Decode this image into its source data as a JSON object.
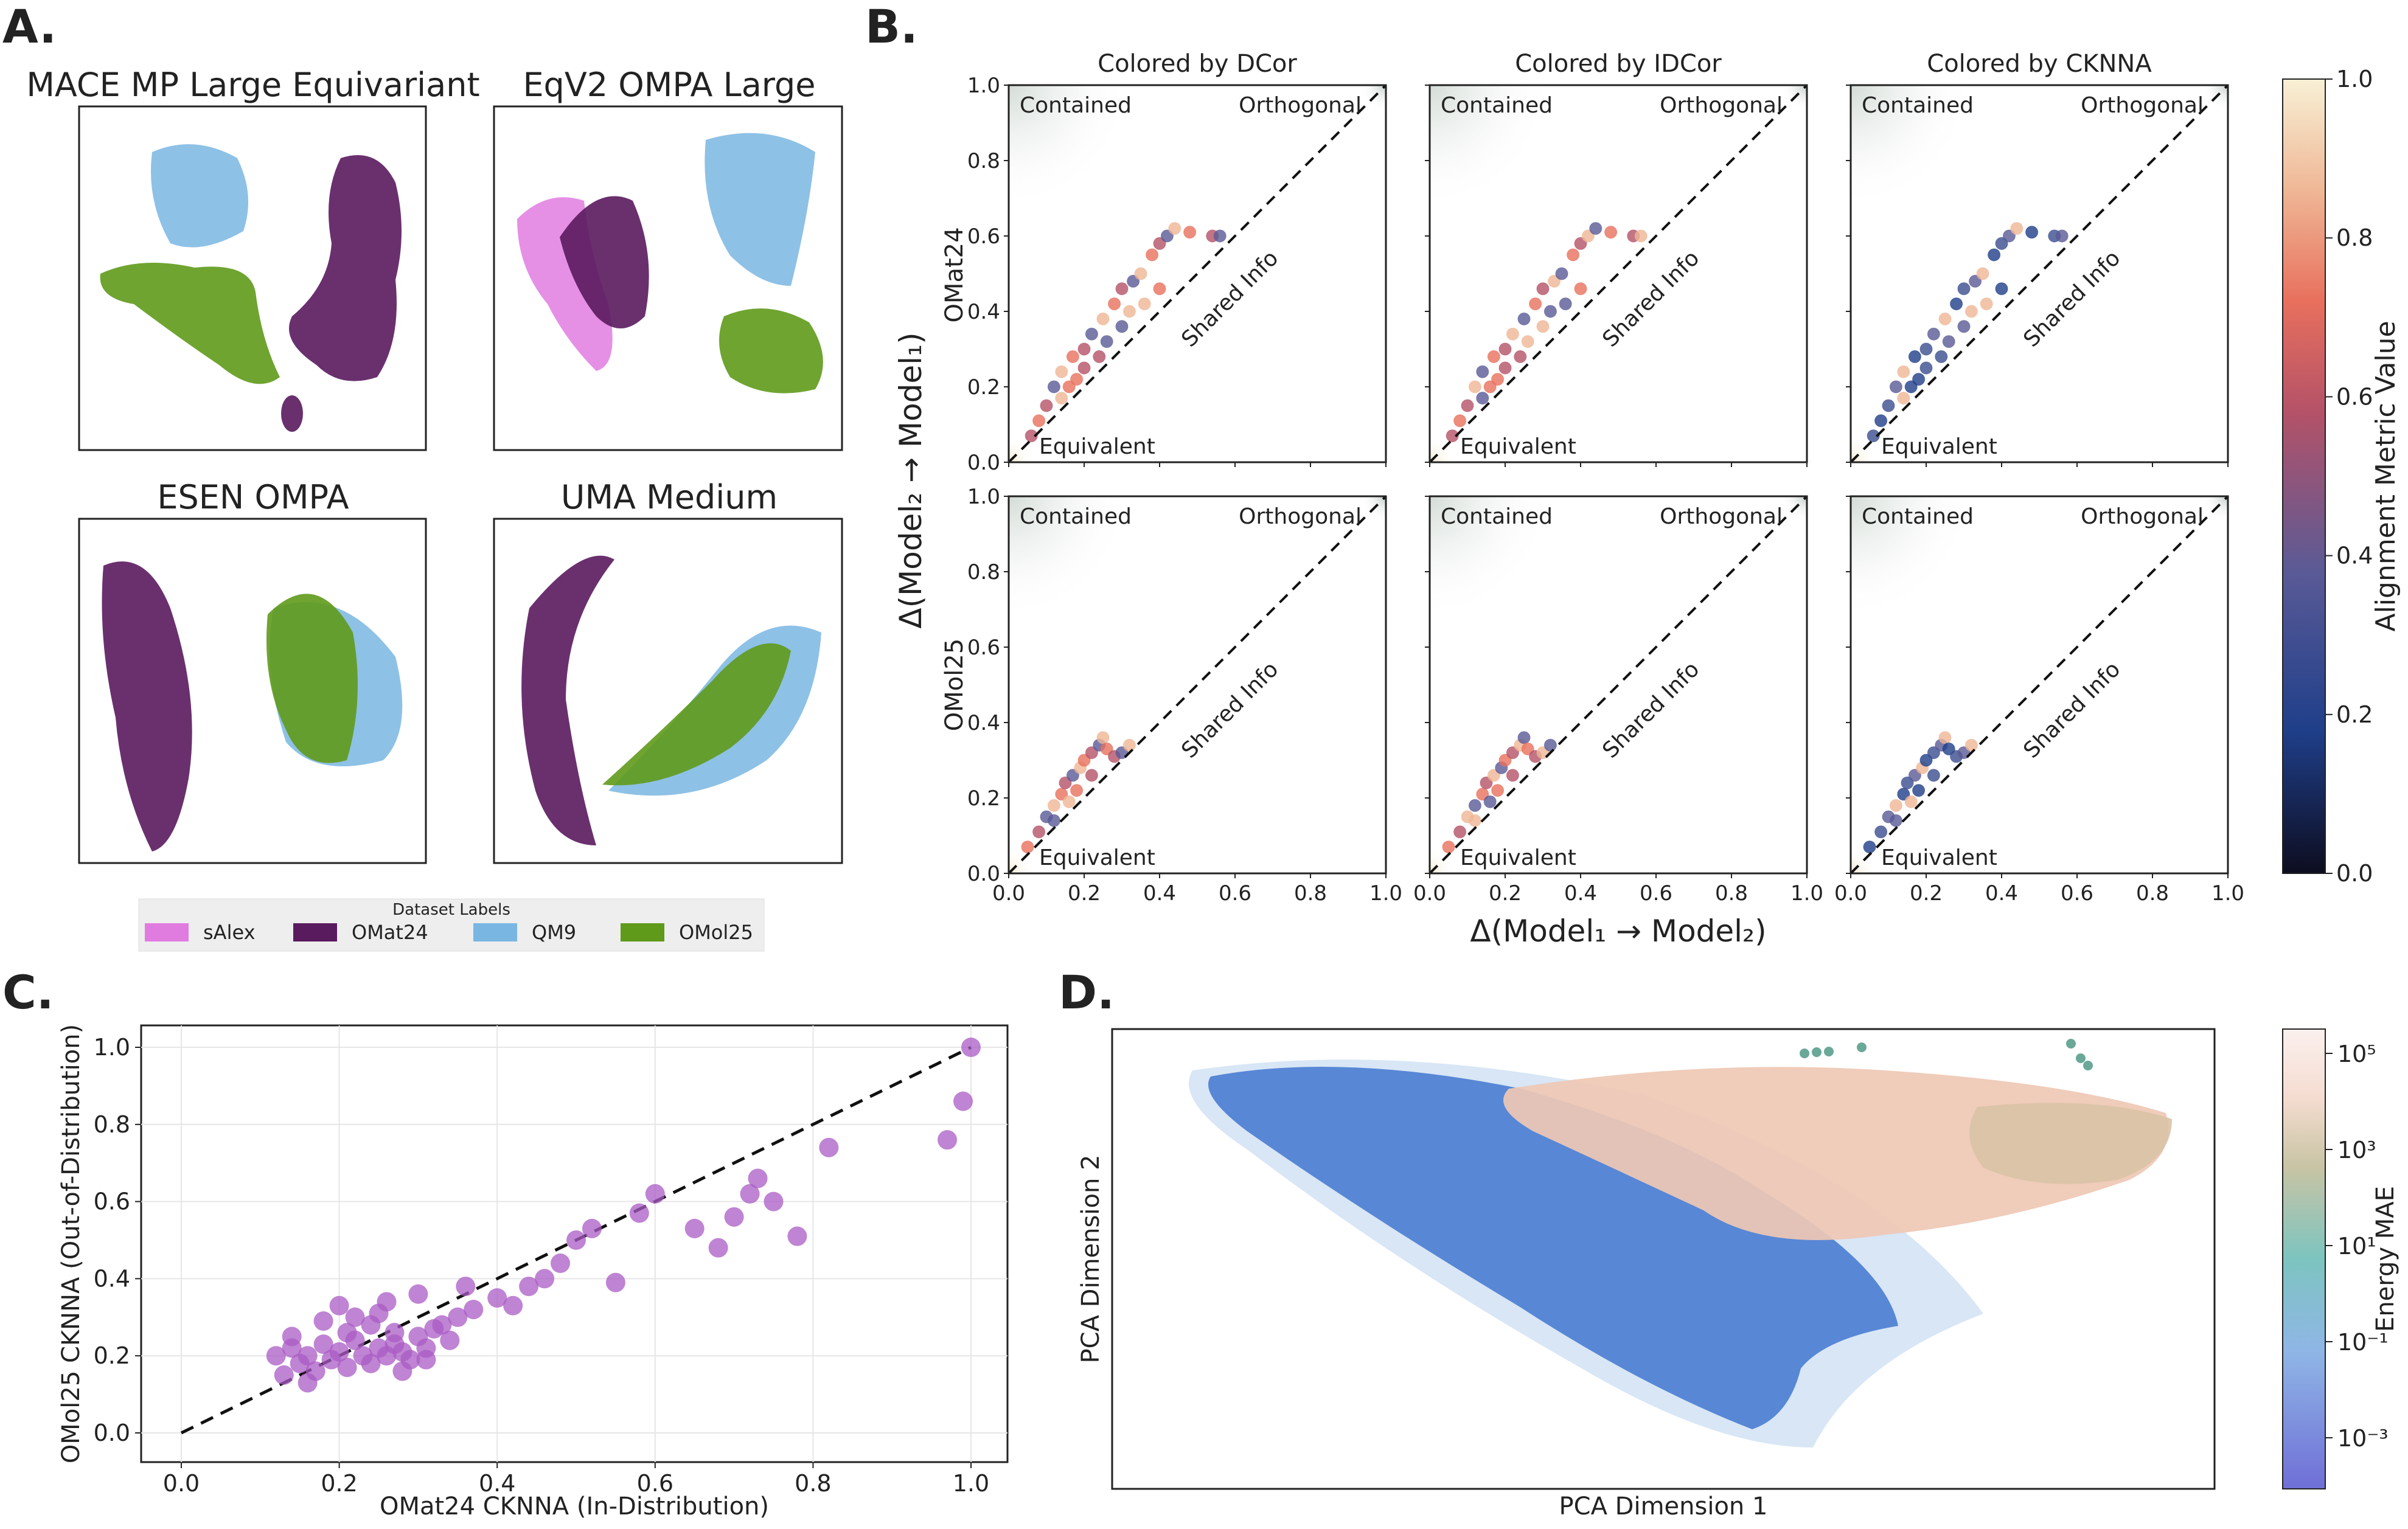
{
  "panels": {
    "a_label": "A.",
    "b_label": "B.",
    "c_label": "C.",
    "d_label": "D."
  },
  "umap": {
    "titles": [
      "MACE MP Large Equivariant",
      "EqV2 OMPA Large",
      "ESEN OMPA",
      "UMA Medium"
    ],
    "legend_title": "Dataset Labels",
    "legend": [
      {
        "label": "sAlex",
        "color": "#e07ce0"
      },
      {
        "label": "OMat24",
        "color": "#5a1a5e"
      },
      {
        "label": "QM9",
        "color": "#7ab6e2"
      },
      {
        "label": "OMol25",
        "color": "#5f9a1b"
      }
    ]
  },
  "chart_data": [
    {
      "type": "scatter",
      "id": "B",
      "col_titles": [
        "Colored by DCor",
        "Colored by IDCor",
        "Colored by CKNNA"
      ],
      "row_labels": [
        "OMat24",
        "OMol25"
      ],
      "xlabel": "Δ(Model₁ → Model₂)",
      "ylabel": "Δ(Model₂ → Model₁)",
      "xlim": [
        0,
        1
      ],
      "ylim": [
        0,
        1
      ],
      "ticks": [
        "0.0",
        "0.2",
        "0.4",
        "0.6",
        "0.8",
        "1.0"
      ],
      "region_labels": {
        "contained": "Contained",
        "orthogonal": "Orthogonal",
        "shared": "Shared Info",
        "equivalent": "Equivalent"
      },
      "diagonal": "y = x",
      "colorbar": {
        "label": "Alignment Metric Value",
        "ticks": [
          "0.0",
          "0.2",
          "0.4",
          "0.6",
          "0.8",
          "1.0"
        ],
        "stops": [
          "#0d0d1f",
          "#1f3f8a",
          "#5a5a96",
          "#b45268",
          "#e8705d",
          "#efb796",
          "#f8f0d5"
        ]
      },
      "series": [
        {
          "name": "OMat24",
          "points": [
            [
              0.08,
              0.11
            ],
            [
              0.1,
              0.15
            ],
            [
              0.12,
              0.2
            ],
            [
              0.14,
              0.24
            ],
            [
              0.17,
              0.28
            ],
            [
              0.2,
              0.3
            ],
            [
              0.22,
              0.34
            ],
            [
              0.25,
              0.38
            ],
            [
              0.28,
              0.42
            ],
            [
              0.3,
              0.46
            ],
            [
              0.33,
              0.48
            ],
            [
              0.35,
              0.5
            ],
            [
              0.38,
              0.55
            ],
            [
              0.4,
              0.58
            ],
            [
              0.42,
              0.6
            ],
            [
              0.44,
              0.62
            ],
            [
              0.48,
              0.61
            ],
            [
              0.54,
              0.6
            ],
            [
              0.56,
              0.6
            ],
            [
              0.14,
              0.17
            ],
            [
              0.18,
              0.22
            ],
            [
              0.24,
              0.28
            ],
            [
              0.3,
              0.36
            ],
            [
              0.36,
              0.42
            ],
            [
              0.4,
              0.46
            ],
            [
              0.06,
              0.07
            ],
            [
              0.26,
              0.32
            ],
            [
              0.32,
              0.4
            ],
            [
              0.16,
              0.2
            ],
            [
              0.2,
              0.25
            ]
          ]
        },
        {
          "name": "OMol25",
          "points": [
            [
              0.05,
              0.07
            ],
            [
              0.08,
              0.11
            ],
            [
              0.1,
              0.15
            ],
            [
              0.12,
              0.18
            ],
            [
              0.14,
              0.21
            ],
            [
              0.15,
              0.24
            ],
            [
              0.17,
              0.26
            ],
            [
              0.19,
              0.28
            ],
            [
              0.2,
              0.3
            ],
            [
              0.22,
              0.32
            ],
            [
              0.24,
              0.34
            ],
            [
              0.25,
              0.36
            ],
            [
              0.26,
              0.33
            ],
            [
              0.28,
              0.31
            ],
            [
              0.3,
              0.32
            ],
            [
              0.32,
              0.34
            ],
            [
              0.18,
              0.22
            ],
            [
              0.22,
              0.26
            ],
            [
              0.12,
              0.14
            ],
            [
              0.16,
              0.19
            ]
          ]
        }
      ]
    },
    {
      "type": "scatter",
      "id": "C",
      "xlabel": "OMat24 CKNNA (In-Distribution)",
      "ylabel": "OMol25 CKNNA (Out-of-Distribution)",
      "xlim": [
        0,
        1
      ],
      "ylim": [
        0,
        1
      ],
      "xticks": [
        "0.0",
        "0.2",
        "0.4",
        "0.6",
        "0.8",
        "1.0"
      ],
      "yticks": [
        "0.0",
        "0.2",
        "0.4",
        "0.6",
        "0.8",
        "1.0"
      ],
      "color": "#a95bc4",
      "points": [
        [
          0.12,
          0.2
        ],
        [
          0.13,
          0.15
        ],
        [
          0.14,
          0.22
        ],
        [
          0.15,
          0.18
        ],
        [
          0.16,
          0.2
        ],
        [
          0.17,
          0.16
        ],
        [
          0.18,
          0.23
        ],
        [
          0.19,
          0.19
        ],
        [
          0.2,
          0.21
        ],
        [
          0.21,
          0.17
        ],
        [
          0.22,
          0.24
        ],
        [
          0.23,
          0.2
        ],
        [
          0.24,
          0.18
        ],
        [
          0.25,
          0.22
        ],
        [
          0.26,
          0.2
        ],
        [
          0.27,
          0.23
        ],
        [
          0.28,
          0.21
        ],
        [
          0.29,
          0.19
        ],
        [
          0.3,
          0.25
        ],
        [
          0.31,
          0.22
        ],
        [
          0.32,
          0.27
        ],
        [
          0.33,
          0.28
        ],
        [
          0.35,
          0.3
        ],
        [
          0.37,
          0.32
        ],
        [
          0.4,
          0.35
        ],
        [
          0.42,
          0.33
        ],
        [
          0.44,
          0.38
        ],
        [
          0.46,
          0.4
        ],
        [
          0.48,
          0.44
        ],
        [
          0.5,
          0.5
        ],
        [
          0.52,
          0.53
        ],
        [
          0.55,
          0.39
        ],
        [
          0.58,
          0.57
        ],
        [
          0.6,
          0.62
        ],
        [
          0.65,
          0.53
        ],
        [
          0.68,
          0.48
        ],
        [
          0.7,
          0.56
        ],
        [
          0.72,
          0.62
        ],
        [
          0.73,
          0.66
        ],
        [
          0.75,
          0.6
        ],
        [
          0.78,
          0.51
        ],
        [
          0.82,
          0.74
        ],
        [
          0.97,
          0.76
        ],
        [
          0.99,
          0.86
        ],
        [
          1.0,
          1.0
        ],
        [
          0.2,
          0.33
        ],
        [
          0.22,
          0.3
        ],
        [
          0.26,
          0.34
        ],
        [
          0.3,
          0.36
        ],
        [
          0.36,
          0.38
        ],
        [
          0.28,
          0.16
        ],
        [
          0.14,
          0.25
        ],
        [
          0.18,
          0.29
        ],
        [
          0.24,
          0.28
        ],
        [
          0.34,
          0.24
        ],
        [
          0.16,
          0.13
        ],
        [
          0.21,
          0.26
        ],
        [
          0.25,
          0.31
        ],
        [
          0.27,
          0.26
        ],
        [
          0.31,
          0.19
        ]
      ],
      "diagonal": "y = x"
    },
    {
      "type": "scatter",
      "id": "D",
      "xlabel": "PCA Dimension 1",
      "ylabel": "PCA Dimension 2",
      "colorbar": {
        "label": "Energy MAE",
        "ticks": [
          "10⁻³",
          "10⁻¹",
          "10¹",
          "10³",
          "10⁵"
        ],
        "stops": [
          "#6f6fd6",
          "#8fb6e6",
          "#7dc4c0",
          "#c8c4a4",
          "#f5dcd0",
          "#fbf0ee"
        ]
      },
      "clusters": [
        {
          "name": "low-error (blue)",
          "color": "#2a62c8"
        },
        {
          "name": "high-error (peach)",
          "color": "#efc8b4"
        },
        {
          "name": "outliers (teal)",
          "color": "#6aa898"
        }
      ]
    }
  ]
}
